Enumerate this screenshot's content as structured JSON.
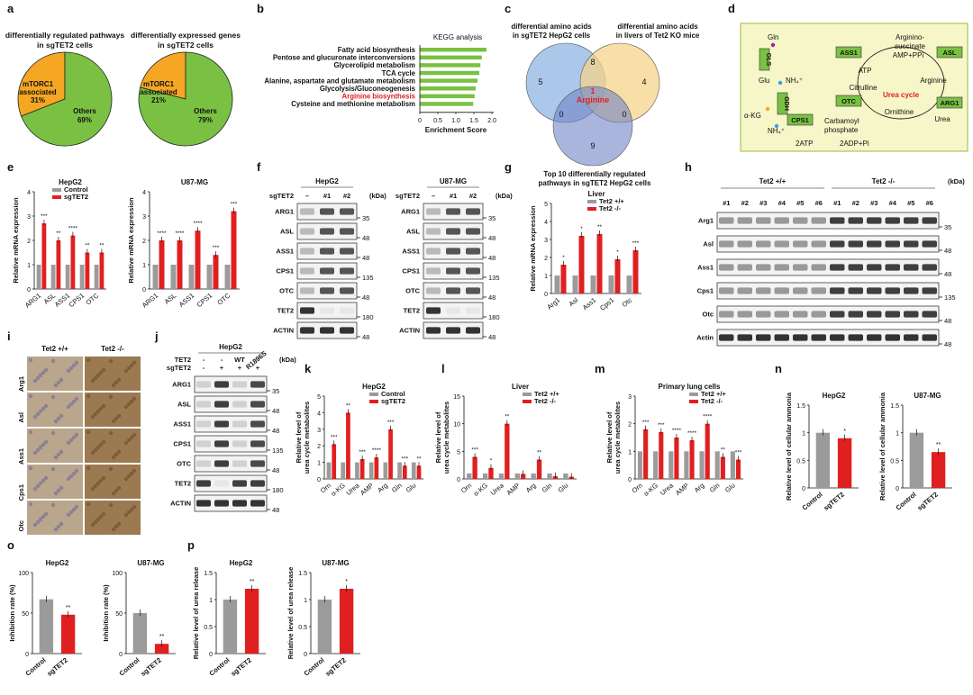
{
  "panel_letters": [
    "a",
    "b",
    "c",
    "d",
    "e",
    "f",
    "g",
    "h",
    "i",
    "j",
    "k",
    "l",
    "m",
    "n",
    "o",
    "p"
  ],
  "colors": {
    "orange": "#f5a623",
    "green": "#7ac143",
    "gray": "#9b9b9b",
    "red": "#e02020",
    "venn1": "#8fb4e3",
    "venn2": "#f5d38a",
    "venn3": "#6f83c6",
    "urea_bg": "#f6f6c8",
    "urea_border": "#9bbb3b",
    "enzyme": "#7ac143"
  },
  "a": {
    "pies": [
      {
        "title1": "differentially regulated pathways",
        "title2": "in sgTET2 cells",
        "slices": [
          {
            "label1": "mTORC1",
            "label2": "associated",
            "pct_text": "31%",
            "value": 31
          },
          {
            "label1": "Others",
            "label2": "",
            "pct_text": "69%",
            "value": 69
          }
        ]
      },
      {
        "title1": "differentially expressed genes",
        "title2": "in sgTET2 cells",
        "slices": [
          {
            "label1": "mTORC1",
            "label2": "associated",
            "pct_text": "21%",
            "value": 21
          },
          {
            "label1": "Others",
            "label2": "",
            "pct_text": "79%",
            "value": 79
          }
        ]
      }
    ]
  },
  "b": {
    "title": "KEGG analysis",
    "xlabel": "Enrichment Score",
    "xticks": [
      "0",
      "0.5",
      "1.0",
      "1.5",
      "2.0"
    ],
    "xlim": [
      0,
      2
    ],
    "pathways": [
      {
        "name": "Fatty acid biosynthesis",
        "value": 1.85,
        "highlight": false
      },
      {
        "name": "Pentose and glucuronate interconversions",
        "value": 1.72,
        "highlight": false
      },
      {
        "name": "Glycerolipid metabolism",
        "value": 1.68,
        "highlight": false
      },
      {
        "name": "TCA cycle",
        "value": 1.65,
        "highlight": false
      },
      {
        "name": "Alanine, aspartate and glutamate metabolism",
        "value": 1.6,
        "highlight": false
      },
      {
        "name": "Glycolysis/Gluconeogenesis",
        "value": 1.55,
        "highlight": false
      },
      {
        "name": "Arginine biosynthesis",
        "value": 1.52,
        "highlight": true
      },
      {
        "name": "Cysteine and methionine metabolism",
        "value": 1.48,
        "highlight": false
      }
    ]
  },
  "c": {
    "set1": [
      "differential amino acids",
      "in sgTET2 HepG2 cells"
    ],
    "set2": [
      "differential amino acids",
      "in livers of Tet2 KO mice"
    ],
    "set3": [
      "Top 10 differentially regulated",
      "pathways in sgTET2 HepG2 cells"
    ],
    "counts": {
      "only1": "5",
      "only2": "4",
      "only3": "9",
      "s12": "8",
      "s13": "0",
      "s23": "0",
      "all": "1",
      "all_name": "Arginine"
    }
  },
  "d": {
    "nodes": {
      "gln": "Gln",
      "glu": "Glu",
      "akg": "α-KG",
      "nh4a": "NH₄⁺",
      "nh4b": "NH₄⁺",
      "arginino1": "Arginino-",
      "arginino2": "succinate",
      "amp": "AMP+PPi",
      "atp": "ATP",
      "citrulline": "Citrulline",
      "arginine": "Arginine",
      "cycle": "Urea cycle",
      "ornithine": "Ornithine",
      "urea": "Urea",
      "carb1": "Carbamoyl",
      "carb2": "phosphate",
      "atp2": "2ATP",
      "adp": "2ADP+Pi"
    },
    "enzymes": {
      "ass1": "ASS1",
      "asl": "ASL",
      "otc": "OTC",
      "arg1": "ARG1",
      "cps1": "CPS1",
      "gls": "GLS",
      "gdh": "GDH"
    }
  },
  "e": {
    "ylabel": "Relative mRNA expression",
    "legend": [
      "Control",
      "sgTET2"
    ],
    "categories": [
      "ARG1",
      "ASL",
      "ASS1",
      "CPS1",
      "OTC"
    ],
    "panels": [
      {
        "title": "HepG2",
        "yticks": [
          "0",
          "1",
          "2",
          "3",
          "4"
        ],
        "ylim": [
          0,
          4
        ],
        "control": [
          1,
          1,
          1,
          1,
          1
        ],
        "treat": [
          2.7,
          2.0,
          2.2,
          1.5,
          1.5
        ],
        "sig": [
          "***",
          "**",
          "****",
          "**",
          "**"
        ]
      },
      {
        "title": "U87-MG",
        "yticks": [
          "0",
          "1",
          "2",
          "3",
          "4"
        ],
        "ylim": [
          0,
          4
        ],
        "control": [
          1,
          1,
          1,
          1,
          1
        ],
        "treat": [
          2.0,
          2.0,
          2.4,
          1.4,
          3.2
        ],
        "sig": [
          "****",
          "****",
          "****",
          "***",
          "***"
        ]
      }
    ]
  },
  "f": {
    "kda": "(kDa)",
    "row_label": "sgTET2",
    "lanes": [
      "–",
      "#1",
      "#2"
    ],
    "proteins": [
      "ARG1",
      "ASL",
      "ASS1",
      "CPS1",
      "OTC",
      "TET2",
      "ACTIN"
    ],
    "markers": [
      "35",
      "48",
      "48",
      "135",
      "48",
      "180",
      "48"
    ],
    "blots": [
      {
        "title": "HepG2"
      },
      {
        "title": "U87-MG"
      }
    ]
  },
  "g": {
    "title": "Liver",
    "ylabel": "Relative mRNA expression",
    "legend": [
      "Tet2 +/+",
      "Tet2 -/-"
    ],
    "categories": [
      "Arg1",
      "Asl",
      "Ass1",
      "Cps1",
      "Otc"
    ],
    "yticks": [
      "0",
      "1",
      "2",
      "3",
      "4",
      "5"
    ],
    "ylim": [
      0,
      5
    ],
    "control": [
      1,
      1,
      1,
      1,
      1
    ],
    "treat": [
      1.6,
      3.2,
      3.3,
      1.9,
      2.4
    ],
    "sig": [
      "*",
      "*",
      "**",
      "*",
      "***"
    ]
  },
  "h": {
    "kda": "(kDa)",
    "groups": [
      "Tet2 +/+",
      "Tet2 -/-"
    ],
    "lanes": [
      "#1",
      "#2",
      "#3",
      "#4",
      "#5",
      "#6",
      "#1",
      "#2",
      "#3",
      "#4",
      "#5",
      "#6"
    ],
    "proteins": [
      "Arg1",
      "Asl",
      "Ass1",
      "Cps1",
      "Otc",
      "Actin"
    ],
    "markers": [
      "35",
      "48",
      "48",
      "135",
      "48",
      "48"
    ]
  },
  "i": {
    "groups": [
      "Tet2 +/+",
      "Tet2 -/-"
    ],
    "rows": [
      "Arg1",
      "Asl",
      "Ass1",
      "Cps1",
      "Otc"
    ]
  },
  "j": {
    "title": "HepG2",
    "kda": "(kDa)",
    "rows": [
      "TET2",
      "sgTET2"
    ],
    "tet2_lanes": [
      "-",
      "-",
      "WT",
      "R1896S"
    ],
    "sg_lanes": [
      "-",
      "+",
      "+",
      "+"
    ],
    "proteins": [
      "ARG1",
      "ASL",
      "ASS1",
      "CPS1",
      "OTC",
      "TET2",
      "ACTIN"
    ],
    "markers": [
      "35",
      "48",
      "48",
      "135",
      "48",
      "180",
      "48"
    ]
  },
  "k": {
    "title": "HepG2",
    "ylabel1": "Relative level of",
    "ylabel2": "urea cycle metabolites",
    "legend": [
      "Control",
      "sgTET2"
    ],
    "categories": [
      "Orn",
      "α-KG",
      "Urea",
      "AMP",
      "Arg",
      "Gln",
      "Glu"
    ],
    "yticks": [
      "0",
      "1",
      "2",
      "3",
      "4",
      "5"
    ],
    "ylim": [
      0,
      5
    ],
    "control": [
      1,
      1,
      1,
      1,
      1,
      1,
      1
    ],
    "treat": [
      2.1,
      4.0,
      1.2,
      1.3,
      3.0,
      0.8,
      0.8
    ],
    "sig": [
      "***",
      "**",
      "***",
      "****",
      "***",
      "***",
      "**"
    ]
  },
  "l": {
    "title": "Liver",
    "ylabel1": "Relative level of",
    "ylabel2": "urea cycle metabolites",
    "legend": [
      "Tet2 +/+",
      "Tet2 -/-"
    ],
    "categories": [
      "Orn",
      "α-KG",
      "Urea",
      "AMP",
      "Arg",
      "Gln",
      "Glu"
    ],
    "yticks": [
      "0",
      "5",
      "10",
      "15"
    ],
    "ylim": [
      0,
      15
    ],
    "control": [
      1,
      1,
      1,
      1,
      1,
      1,
      1
    ],
    "treat": [
      4.0,
      2.0,
      10.0,
      0.9,
      3.5,
      0.5,
      0.4
    ],
    "sig": [
      "***",
      "*",
      "**",
      "",
      "**",
      "",
      ""
    ]
  },
  "m": {
    "title": "Primary lung cells",
    "ylabel1": "Relative level of",
    "ylabel2": "urea cycle metabolites",
    "legend": [
      "Tet2 +/+",
      "Tet2 -/-"
    ],
    "categories": [
      "Orn",
      "α-KG",
      "Urea",
      "AMP",
      "Arg",
      "Gln",
      "Glu"
    ],
    "yticks": [
      "0",
      "1",
      "2",
      "3"
    ],
    "ylim": [
      0,
      3
    ],
    "control": [
      1,
      1,
      1,
      1,
      1,
      1,
      1
    ],
    "treat": [
      1.8,
      1.7,
      1.5,
      1.4,
      2.0,
      0.8,
      0.7
    ],
    "sig": [
      "***",
      "***",
      "****",
      "****",
      "****",
      "**",
      "***"
    ]
  },
  "n": {
    "ylabel": "Relative level of cellular ammonia",
    "categories": [
      "Control",
      "sgTET2"
    ],
    "yticks": [
      "0",
      "0.5",
      "1",
      "1.5"
    ],
    "ylim": [
      0,
      1.5
    ],
    "panels": [
      {
        "title": "HepG2",
        "values": [
          1.0,
          0.9
        ],
        "sig": "*"
      },
      {
        "title": "U87-MG",
        "values": [
          1.0,
          0.65
        ],
        "sig": "**"
      }
    ]
  },
  "o": {
    "ylabel": "Inhibition rate (%)",
    "categories": [
      "Control",
      "sgTET2"
    ],
    "yticks": [
      "0",
      "50",
      "100"
    ],
    "ylim": [
      0,
      100
    ],
    "panels": [
      {
        "title": "HepG2",
        "values": [
          67,
          48
        ],
        "sig": "**"
      },
      {
        "title": "U87-MG",
        "values": [
          50,
          12
        ],
        "sig": "**"
      }
    ]
  },
  "p": {
    "ylabel": "Relative level of urea release",
    "categories": [
      "Control",
      "sgTET2"
    ],
    "yticks": [
      "0",
      "0.5",
      "1",
      "1.5"
    ],
    "ylim": [
      0,
      1.5
    ],
    "panels": [
      {
        "title": "HepG2",
        "values": [
          1.0,
          1.2
        ],
        "sig": "**"
      },
      {
        "title": "U87-MG",
        "values": [
          1.0,
          1.2
        ],
        "sig": "*"
      }
    ]
  },
  "chart_data": [
    {
      "type": "pie",
      "categories": [
        "mTORC1 associated",
        "Others"
      ],
      "values": [
        31,
        69
      ],
      "title": "differentially regulated pathways in sgTET2 cells"
    },
    {
      "type": "pie",
      "categories": [
        "mTORC1 associated",
        "Others"
      ],
      "values": [
        21,
        79
      ],
      "title": "differentially expressed genes in sgTET2 cells"
    },
    {
      "type": "bar",
      "title": "KEGG analysis",
      "xlabel": "Enrichment Score",
      "categories": [
        "Fatty acid biosynthesis",
        "Pentose and glucuronate interconversions",
        "Glycerolipid metabolism",
        "TCA cycle",
        "Alanine, aspartate and glutamate metabolism",
        "Glycolysis/Gluconeogenesis",
        "Arginine biosynthesis",
        "Cysteine and methionine metabolism"
      ],
      "values": [
        1.85,
        1.72,
        1.68,
        1.65,
        1.6,
        1.55,
        1.52,
        1.48
      ]
    },
    {
      "type": "bar",
      "title": "HepG2",
      "ylabel": "Relative mRNA expression",
      "categories": [
        "ARG1",
        "ASL",
        "ASS1",
        "CPS1",
        "OTC"
      ],
      "series": [
        {
          "name": "Control",
          "values": [
            1,
            1,
            1,
            1,
            1
          ]
        },
        {
          "name": "sgTET2",
          "values": [
            2.7,
            2.0,
            2.2,
            1.5,
            1.5
          ]
        }
      ]
    },
    {
      "type": "bar",
      "title": "U87-MG",
      "ylabel": "Relative mRNA expression",
      "categories": [
        "ARG1",
        "ASL",
        "ASS1",
        "CPS1",
        "OTC"
      ],
      "series": [
        {
          "name": "Control",
          "values": [
            1,
            1,
            1,
            1,
            1
          ]
        },
        {
          "name": "sgTET2",
          "values": [
            2.0,
            2.0,
            2.4,
            1.4,
            3.2
          ]
        }
      ]
    },
    {
      "type": "bar",
      "title": "Liver",
      "ylabel": "Relative mRNA expression",
      "categories": [
        "Arg1",
        "Asl",
        "Ass1",
        "Cps1",
        "Otc"
      ],
      "series": [
        {
          "name": "Tet2 +/+",
          "values": [
            1,
            1,
            1,
            1,
            1
          ]
        },
        {
          "name": "Tet2 -/-",
          "values": [
            1.6,
            3.2,
            3.3,
            1.9,
            2.4
          ]
        }
      ]
    },
    {
      "type": "bar",
      "title": "HepG2",
      "categories": [
        "Orn",
        "α-KG",
        "Urea",
        "AMP",
        "Arg",
        "Gln",
        "Glu"
      ],
      "series": [
        {
          "name": "Control",
          "values": [
            1,
            1,
            1,
            1,
            1,
            1,
            1
          ]
        },
        {
          "name": "sgTET2",
          "values": [
            2.1,
            4.0,
            1.2,
            1.3,
            3.0,
            0.8,
            0.8
          ]
        }
      ]
    },
    {
      "type": "bar",
      "title": "Liver",
      "categories": [
        "Orn",
        "α-KG",
        "Urea",
        "AMP",
        "Arg",
        "Gln",
        "Glu"
      ],
      "series": [
        {
          "name": "Tet2 +/+",
          "values": [
            1,
            1,
            1,
            1,
            1,
            1,
            1
          ]
        },
        {
          "name": "Tet2 -/-",
          "values": [
            4.0,
            2.0,
            10.0,
            0.9,
            3.5,
            0.5,
            0.4
          ]
        }
      ]
    },
    {
      "type": "bar",
      "title": "Primary lung cells",
      "categories": [
        "Orn",
        "α-KG",
        "Urea",
        "AMP",
        "Arg",
        "Gln",
        "Glu"
      ],
      "series": [
        {
          "name": "Tet2 +/+",
          "values": [
            1,
            1,
            1,
            1,
            1,
            1,
            1
          ]
        },
        {
          "name": "Tet2 -/-",
          "values": [
            1.8,
            1.7,
            1.5,
            1.4,
            2.0,
            0.8,
            0.7
          ]
        }
      ]
    },
    {
      "type": "bar",
      "title": "HepG2",
      "ylabel": "Relative level of cellular ammonia",
      "categories": [
        "Control",
        "sgTET2"
      ],
      "values": [
        1.0,
        0.9
      ]
    },
    {
      "type": "bar",
      "title": "U87-MG",
      "ylabel": "Relative level of cellular ammonia",
      "categories": [
        "Control",
        "sgTET2"
      ],
      "values": [
        1.0,
        0.65
      ]
    },
    {
      "type": "bar",
      "title": "HepG2",
      "ylabel": "Inhibition rate (%)",
      "categories": [
        "Control",
        "sgTET2"
      ],
      "values": [
        67,
        48
      ]
    },
    {
      "type": "bar",
      "title": "U87-MG",
      "ylabel": "Inhibition rate (%)",
      "categories": [
        "Control",
        "sgTET2"
      ],
      "values": [
        50,
        12
      ]
    },
    {
      "type": "bar",
      "title": "HepG2",
      "ylabel": "Relative level of urea release",
      "categories": [
        "Control",
        "sgTET2"
      ],
      "values": [
        1.0,
        1.2
      ]
    },
    {
      "type": "bar",
      "title": "U87-MG",
      "ylabel": "Relative level of urea release",
      "categories": [
        "Control",
        "sgTET2"
      ],
      "values": [
        1.0,
        1.2
      ]
    }
  ]
}
